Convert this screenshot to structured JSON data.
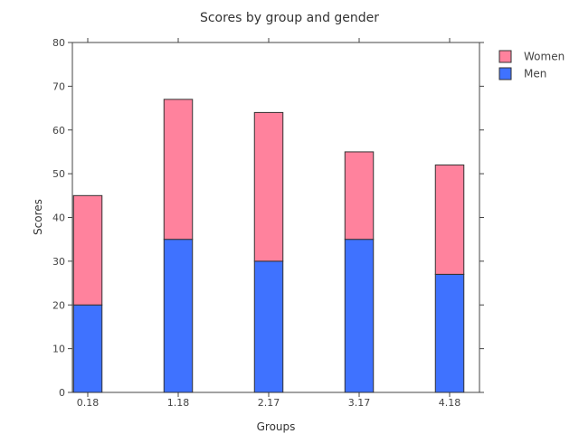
{
  "chart_data": {
    "type": "bar",
    "stacked": true,
    "title": "Scores by group and gender",
    "xlabel": "Groups",
    "ylabel": "Scores",
    "categories": [
      "0.18",
      "1.18",
      "2.17",
      "3.17",
      "4.18"
    ],
    "ylim": [
      0,
      80
    ],
    "yticks": [
      0,
      10,
      20,
      30,
      40,
      50,
      60,
      70,
      80
    ],
    "series": [
      {
        "name": "Men",
        "color": "#3f72ff",
        "values": [
          20,
          35,
          30,
          35,
          27
        ]
      },
      {
        "name": "Women",
        "color": "#ff829d",
        "values": [
          25,
          32,
          34,
          20,
          25
        ]
      }
    ],
    "legend": {
      "placement": "top-right outside",
      "order": [
        "Women",
        "Men"
      ]
    },
    "grid": false
  }
}
